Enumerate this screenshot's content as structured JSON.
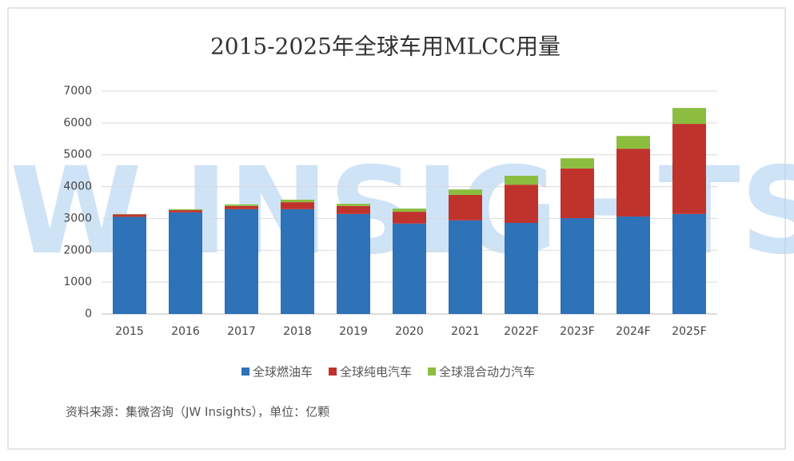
{
  "chart_data": {
    "type": "stacked_bar",
    "title": "2015-2025年全球车用MLCC用量",
    "categories": [
      "2015",
      "2016",
      "2017",
      "2018",
      "2019",
      "2020",
      "2021",
      "2022F",
      "2023F",
      "2024F",
      "2025F"
    ],
    "series": [
      {
        "name": "全球燃油车",
        "color": "#2e72b8",
        "values": [
          3050,
          3190,
          3290,
          3290,
          3140,
          2840,
          2940,
          2860,
          3010,
          3060,
          3140
        ]
      },
      {
        "name": "全球纯电汽车",
        "color": "#c0332d",
        "values": [
          80,
          70,
          100,
          220,
          250,
          370,
          800,
          1200,
          1560,
          2130,
          2830
        ]
      },
      {
        "name": "全球混合动力汽车",
        "color": "#8cbd3f",
        "values": [
          10,
          30,
          50,
          80,
          70,
          100,
          170,
          280,
          320,
          400,
          500
        ]
      }
    ],
    "ylim": [
      0,
      7000
    ],
    "yticks": [
      0,
      1000,
      2000,
      3000,
      4000,
      5000,
      6000,
      7000
    ],
    "grid": true,
    "legend": "bottom",
    "watermark": "JW INSIGHTS",
    "source": "资料来源：集微咨询（JW Insights），单位：亿颗"
  }
}
